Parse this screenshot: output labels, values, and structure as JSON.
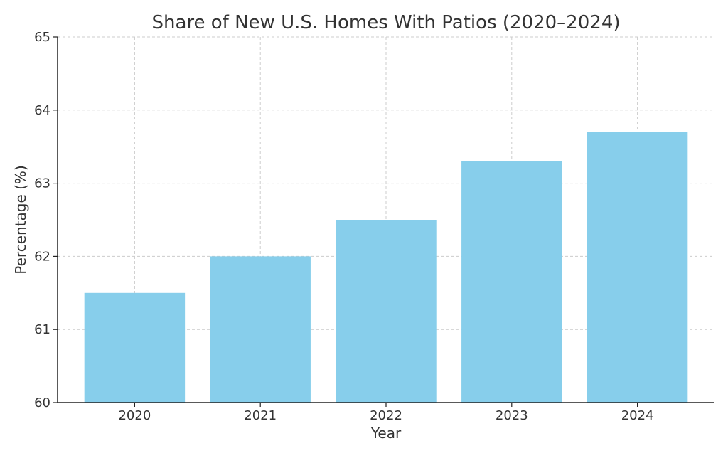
{
  "chart_data": {
    "type": "bar",
    "title": "Share of New U.S. Homes With Patios (2020–2024)",
    "xlabel": "Year",
    "ylabel": "Percentage (%)",
    "categories": [
      "2020",
      "2021",
      "2022",
      "2023",
      "2024"
    ],
    "values": [
      61.5,
      62.0,
      62.5,
      63.3,
      63.7
    ],
    "ylim": [
      60,
      65
    ],
    "yticks": [
      "60",
      "61",
      "62",
      "63",
      "64",
      "65"
    ],
    "grid": true,
    "bar_color": "#87CEEB"
  }
}
